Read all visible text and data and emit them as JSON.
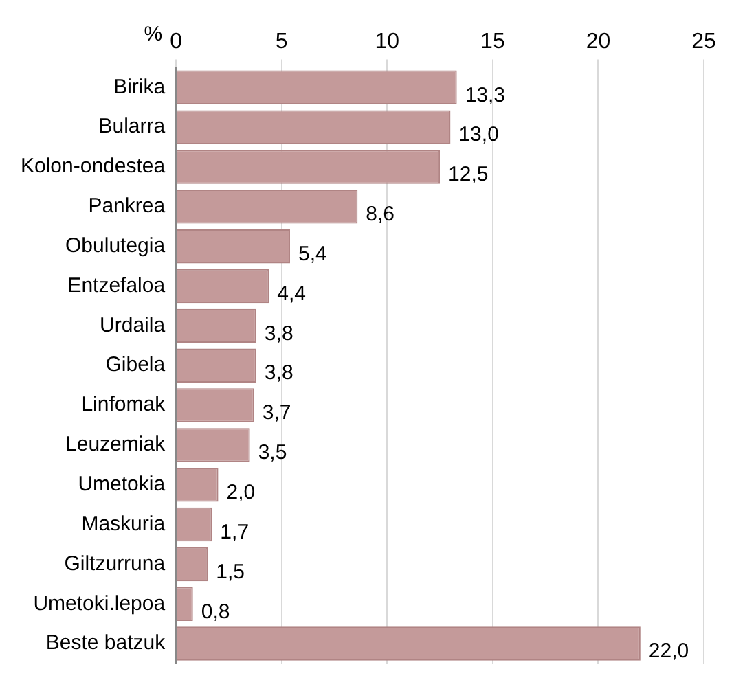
{
  "chart_data": {
    "type": "bar",
    "orientation": "horizontal",
    "xlabel": "%",
    "categories": [
      "Birika",
      "Bularra",
      "Kolon-ondestea",
      "Pankrea",
      "Obulutegia",
      "Entzefaloa",
      "Urdaila",
      "Gibela",
      "Linfomak",
      "Leuzemiak",
      "Umetokia",
      "Maskuria",
      "Giltzurruna",
      "Umetoki.lepoa",
      "Beste batzuk"
    ],
    "values": [
      13.3,
      13.0,
      12.5,
      8.6,
      5.4,
      4.4,
      3.8,
      3.8,
      3.7,
      3.5,
      2.0,
      1.7,
      1.5,
      0.8,
      22.0
    ],
    "value_labels": [
      "13,3",
      "13,0",
      "12,5",
      "8,6",
      "5,4",
      "4,4",
      "3,8",
      "3,8",
      "3,7",
      "3,5",
      "2,0",
      "1,7",
      "1,5",
      "0,8",
      "22,0"
    ],
    "color": "#c49a9a",
    "xlim": [
      0,
      25
    ],
    "xticks": [
      0,
      5,
      10,
      15,
      20,
      25
    ],
    "grid": "x",
    "legend": false
  }
}
